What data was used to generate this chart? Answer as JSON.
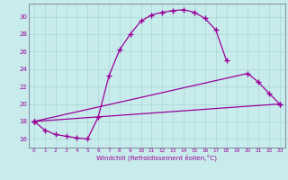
{
  "xlabel": "Windchill (Refroidissement éolien,°C)",
  "background_color": "#c8ecec",
  "grid_color": "#aad4d4",
  "line_color": "#990099",
  "xlim": [
    -0.5,
    23.5
  ],
  "ylim": [
    15.0,
    31.5
  ],
  "yticks": [
    16,
    18,
    20,
    22,
    24,
    26,
    28,
    30
  ],
  "xticks": [
    0,
    1,
    2,
    3,
    4,
    5,
    6,
    7,
    8,
    9,
    10,
    11,
    12,
    13,
    14,
    15,
    16,
    17,
    18,
    19,
    20,
    21,
    22,
    23
  ],
  "line1_x": [
    0,
    1,
    2,
    3,
    4,
    5,
    6,
    7,
    8,
    9,
    10,
    11,
    12,
    13,
    14,
    15,
    16,
    17,
    18
  ],
  "line1_y": [
    18.0,
    17.0,
    16.5,
    16.3,
    16.1,
    16.0,
    18.5,
    23.2,
    26.2,
    28.0,
    29.5,
    30.2,
    30.5,
    30.7,
    30.8,
    30.5,
    29.8,
    28.5,
    25.0
  ],
  "line2_x": [
    0,
    20,
    21,
    22,
    23
  ],
  "line2_y": [
    18.0,
    23.5,
    22.5,
    21.2,
    20.0
  ],
  "line3_x": [
    0,
    23
  ],
  "line3_y": [
    18.0,
    20.0
  ]
}
